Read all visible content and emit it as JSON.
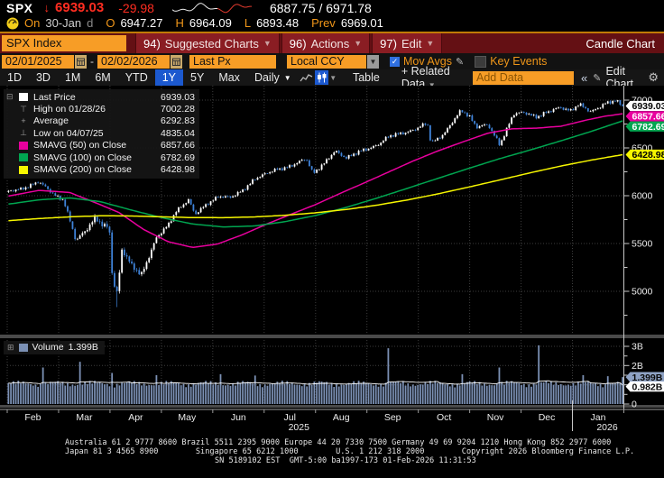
{
  "quote": {
    "ticker": "SPX",
    "arrow": "↓",
    "last": "6939.03",
    "change": "-29.98",
    "range": "6887.75 / 6971.78",
    "session_label": "On",
    "session_date": "30-Jan",
    "session_flag": "d",
    "open_label": "O",
    "open": "6947.27",
    "high_label": "H",
    "high": "6964.09",
    "low_label": "L",
    "low": "6893.48",
    "prev_label": "Prev",
    "prev": "6969.01"
  },
  "menubar": {
    "security": "SPX Index",
    "items": [
      {
        "num": "94)",
        "label": "Suggested Charts"
      },
      {
        "num": "96)",
        "label": "Actions"
      },
      {
        "num": "97)",
        "label": "Edit"
      }
    ],
    "right_label": "Candle Chart"
  },
  "toolbar": {
    "date_from": "02/01/2025",
    "date_sep": "-",
    "date_to": "02/02/2026",
    "price_field": "Last Px",
    "currency_field": "Local CCY",
    "mov_avgs": "Mov Avgs",
    "key_events": "Key Events"
  },
  "periodbar": {
    "ranges": [
      "1D",
      "3D",
      "1M",
      "6M",
      "YTD",
      "1Y",
      "5Y",
      "Max"
    ],
    "active": "1Y",
    "frequency": "Daily",
    "table": "Table",
    "related": "+ Related Data",
    "add_data_placeholder": "Add Data",
    "collapse": "«",
    "edit_chart": "Edit Chart"
  },
  "legend": {
    "items": [
      {
        "type": "swatch",
        "color": "#ffffff",
        "label": "Last Price",
        "value": "6939.03"
      },
      {
        "type": "high",
        "label": "High on 01/28/26",
        "value": "7002.28"
      },
      {
        "type": "avg",
        "label": "Average",
        "value": "6292.83"
      },
      {
        "type": "low",
        "label": "Low on 04/07/25",
        "value": "4835.04"
      },
      {
        "type": "swatch",
        "color": "#e8009e",
        "label": "SMAVG (50) on Close",
        "value": "6857.66"
      },
      {
        "type": "swatch",
        "color": "#00a550",
        "label": "SMAVG (100) on Close",
        "value": "6782.69"
      },
      {
        "type": "swatch",
        "color": "#f6f600",
        "label": "SMAVG (200) on Close",
        "value": "6428.98"
      }
    ]
  },
  "volume_legend": {
    "label": "Volume",
    "value": "1.399B",
    "color": "#7b90b4"
  },
  "footer": {
    "line1": "Australia 61 2 9777 8600 Brazil 5511 2395 9000 Europe 44 20 7330 7500 Germany 49 69 9204 1210 Hong Kong 852 2977 6000",
    "line2": "Japan 81 3 4565 8900        Singapore 65 6212 1000        U.S. 1 212 318 2000        Copyright 2026 Bloomberg Finance L.P.",
    "line3": "SN 5189102 EST  GMT-5:00 ba1997-173 01-Feb-2026 11:31:53"
  },
  "chart_data": {
    "type": "candlestick",
    "symbol": "SPX Index",
    "period": "1Y Daily",
    "x_range": [
      "02/01/2025",
      "02/02/2026"
    ],
    "months": [
      "Feb",
      "Mar",
      "Apr",
      "May",
      "Jun",
      "Jul",
      "Aug",
      "Sep",
      "Oct",
      "Nov",
      "Dec",
      "Jan"
    ],
    "year_labels": [
      {
        "text": "2025",
        "month_index": 5
      },
      {
        "text": "2026",
        "month_index": 11
      }
    ],
    "price_axis": {
      "majors": [
        5000,
        5500,
        6000,
        6500,
        7000
      ],
      "minor_step": 250,
      "view_min": 4547,
      "view_max": 7151
    },
    "volume_axis": {
      "majors": [
        {
          "v": 0,
          "label": "0"
        },
        {
          "v": 1,
          "label": ""
        },
        {
          "v": 2,
          "label": "2B"
        },
        {
          "v": 3,
          "label": "3B"
        }
      ],
      "minor_step": 0.5
    },
    "stats": {
      "last_price": 6939.03,
      "high_value": 7002.28,
      "high_date": "01/28/26",
      "average": 6292.83,
      "low_value": 4835.04,
      "low_date": "04/07/25",
      "smavg50": 6857.66,
      "smavg100": 6782.69,
      "smavg200": 6428.98,
      "last_volume_b": 1.399,
      "volume_ma_b": 0.982
    },
    "price_tags": [
      {
        "value": 6939.03,
        "label": "6939.03",
        "bg": "#ffffff",
        "fg": "#000000"
      },
      {
        "value": 6857.66,
        "label": "6857.66",
        "bg": "#e8009e",
        "fg": "#ffffff"
      },
      {
        "value": 6782.69,
        "label": "6782.69",
        "bg": "#00a550",
        "fg": "#ffffff"
      },
      {
        "value": 6428.98,
        "label": "6428.98",
        "bg": "#f6f600",
        "fg": "#000000"
      }
    ],
    "volume_tags": [
      {
        "value": 1.399,
        "label": "1.399B",
        "bg": "#8ea2c4",
        "fg": "#0a0a0a"
      },
      {
        "value": 0.982,
        "label": "0.982B",
        "bg": "#ffffff",
        "fg": "#0a0a0a"
      }
    ],
    "candle_count": 250,
    "colors": {
      "up": "#ffffff",
      "down": "#3f83d9",
      "sma50": "#e8009e",
      "sma100": "#00a550",
      "sma200": "#f6f600",
      "volume": "#7b90b4",
      "volume_ma": "#ffffff",
      "grid": "#3d3d3d",
      "axis": "#c8c8c8"
    },
    "close_anchors": [
      [
        0,
        6040
      ],
      [
        0.02,
        6070
      ],
      [
        0.049,
        6144
      ],
      [
        0.075,
        6010
      ],
      [
        0.09,
        5955
      ],
      [
        0.11,
        5521
      ],
      [
        0.125,
        5638
      ],
      [
        0.142,
        5777
      ],
      [
        0.155,
        5670
      ],
      [
        0.164,
        5671
      ],
      [
        0.17,
        5074
      ],
      [
        0.178,
        4983
      ],
      [
        0.184,
        5457
      ],
      [
        0.2,
        5276
      ],
      [
        0.216,
        5158
      ],
      [
        0.241,
        5569
      ],
      [
        0.26,
        5687
      ],
      [
        0.274,
        5844
      ],
      [
        0.293,
        5963
      ],
      [
        0.304,
        5803
      ],
      [
        0.32,
        5893
      ],
      [
        0.342,
        6000
      ],
      [
        0.362,
        5977
      ],
      [
        0.38,
        6050
      ],
      [
        0.4,
        6173
      ],
      [
        0.42,
        6227
      ],
      [
        0.436,
        6280
      ],
      [
        0.46,
        6305
      ],
      [
        0.485,
        6390
      ],
      [
        0.496,
        6238
      ],
      [
        0.515,
        6340
      ],
      [
        0.532,
        6469
      ],
      [
        0.55,
        6400
      ],
      [
        0.573,
        6460
      ],
      [
        0.6,
        6532
      ],
      [
        0.619,
        6615
      ],
      [
        0.64,
        6656
      ],
      [
        0.66,
        6688
      ],
      [
        0.682,
        6754
      ],
      [
        0.688,
        6553
      ],
      [
        0.71,
        6654
      ],
      [
        0.737,
        6891
      ],
      [
        0.75,
        6840
      ],
      [
        0.762,
        6720
      ],
      [
        0.781,
        6737
      ],
      [
        0.8,
        6539
      ],
      [
        0.822,
        6849
      ],
      [
        0.841,
        6870
      ],
      [
        0.86,
        6827
      ],
      [
        0.88,
        6875
      ],
      [
        0.899,
        6930
      ],
      [
        0.915,
        6890
      ],
      [
        0.929,
        6950
      ],
      [
        0.948,
        6880
      ],
      [
        0.97,
        6960
      ],
      [
        0.989,
        6990
      ],
      [
        1,
        6939.03
      ]
    ],
    "sma50_anchors": [
      [
        0,
        5996
      ],
      [
        0.05,
        6056
      ],
      [
        0.1,
        6033
      ],
      [
        0.15,
        5905
      ],
      [
        0.18,
        5824
      ],
      [
        0.22,
        5647
      ],
      [
        0.26,
        5519
      ],
      [
        0.3,
        5459
      ],
      [
        0.34,
        5494
      ],
      [
        0.38,
        5589
      ],
      [
        0.42,
        5702
      ],
      [
        0.46,
        5806
      ],
      [
        0.5,
        5907
      ],
      [
        0.54,
        6024
      ],
      [
        0.58,
        6136
      ],
      [
        0.62,
        6251
      ],
      [
        0.66,
        6366
      ],
      [
        0.7,
        6470
      ],
      [
        0.74,
        6563
      ],
      [
        0.78,
        6653
      ],
      [
        0.82,
        6700
      ],
      [
        0.86,
        6707
      ],
      [
        0.9,
        6727
      ],
      [
        0.94,
        6790
      ],
      [
        0.97,
        6830
      ],
      [
        1,
        6857.66
      ]
    ],
    "sma100_anchors": [
      [
        0,
        5912
      ],
      [
        0.05,
        5957
      ],
      [
        0.1,
        5977
      ],
      [
        0.15,
        5938
      ],
      [
        0.2,
        5850
      ],
      [
        0.25,
        5770
      ],
      [
        0.3,
        5704
      ],
      [
        0.35,
        5673
      ],
      [
        0.4,
        5683
      ],
      [
        0.45,
        5728
      ],
      [
        0.5,
        5793
      ],
      [
        0.55,
        5878
      ],
      [
        0.6,
        5975
      ],
      [
        0.65,
        6078
      ],
      [
        0.7,
        6183
      ],
      [
        0.75,
        6287
      ],
      [
        0.8,
        6388
      ],
      [
        0.85,
        6479
      ],
      [
        0.9,
        6575
      ],
      [
        0.95,
        6675
      ],
      [
        1,
        6782.69
      ]
    ],
    "sma200_anchors": [
      [
        0,
        5739
      ],
      [
        0.05,
        5761
      ],
      [
        0.1,
        5779
      ],
      [
        0.15,
        5790
      ],
      [
        0.2,
        5788
      ],
      [
        0.25,
        5779
      ],
      [
        0.3,
        5771
      ],
      [
        0.35,
        5770
      ],
      [
        0.4,
        5778
      ],
      [
        0.45,
        5795
      ],
      [
        0.5,
        5821
      ],
      [
        0.55,
        5856
      ],
      [
        0.6,
        5901
      ],
      [
        0.65,
        5956
      ],
      [
        0.7,
        6020
      ],
      [
        0.75,
        6091
      ],
      [
        0.8,
        6165
      ],
      [
        0.85,
        6240
      ],
      [
        0.9,
        6311
      ],
      [
        0.95,
        6374
      ],
      [
        1,
        6428.98
      ]
    ],
    "volume_profile": {
      "base_b": 0.95,
      "spikes": [
        [
          0.055,
          1.9
        ],
        [
          0.115,
          2.2
        ],
        [
          0.17,
          1.62
        ],
        [
          0.24,
          1.5
        ],
        [
          0.345,
          1.55
        ],
        [
          0.4,
          1.48
        ],
        [
          0.62,
          2.9
        ],
        [
          0.74,
          1.55
        ],
        [
          0.8,
          1.9
        ],
        [
          0.865,
          3.05
        ],
        [
          0.935,
          1.5
        ],
        [
          0.975,
          1.45
        ],
        [
          1,
          1.399
        ]
      ]
    }
  }
}
